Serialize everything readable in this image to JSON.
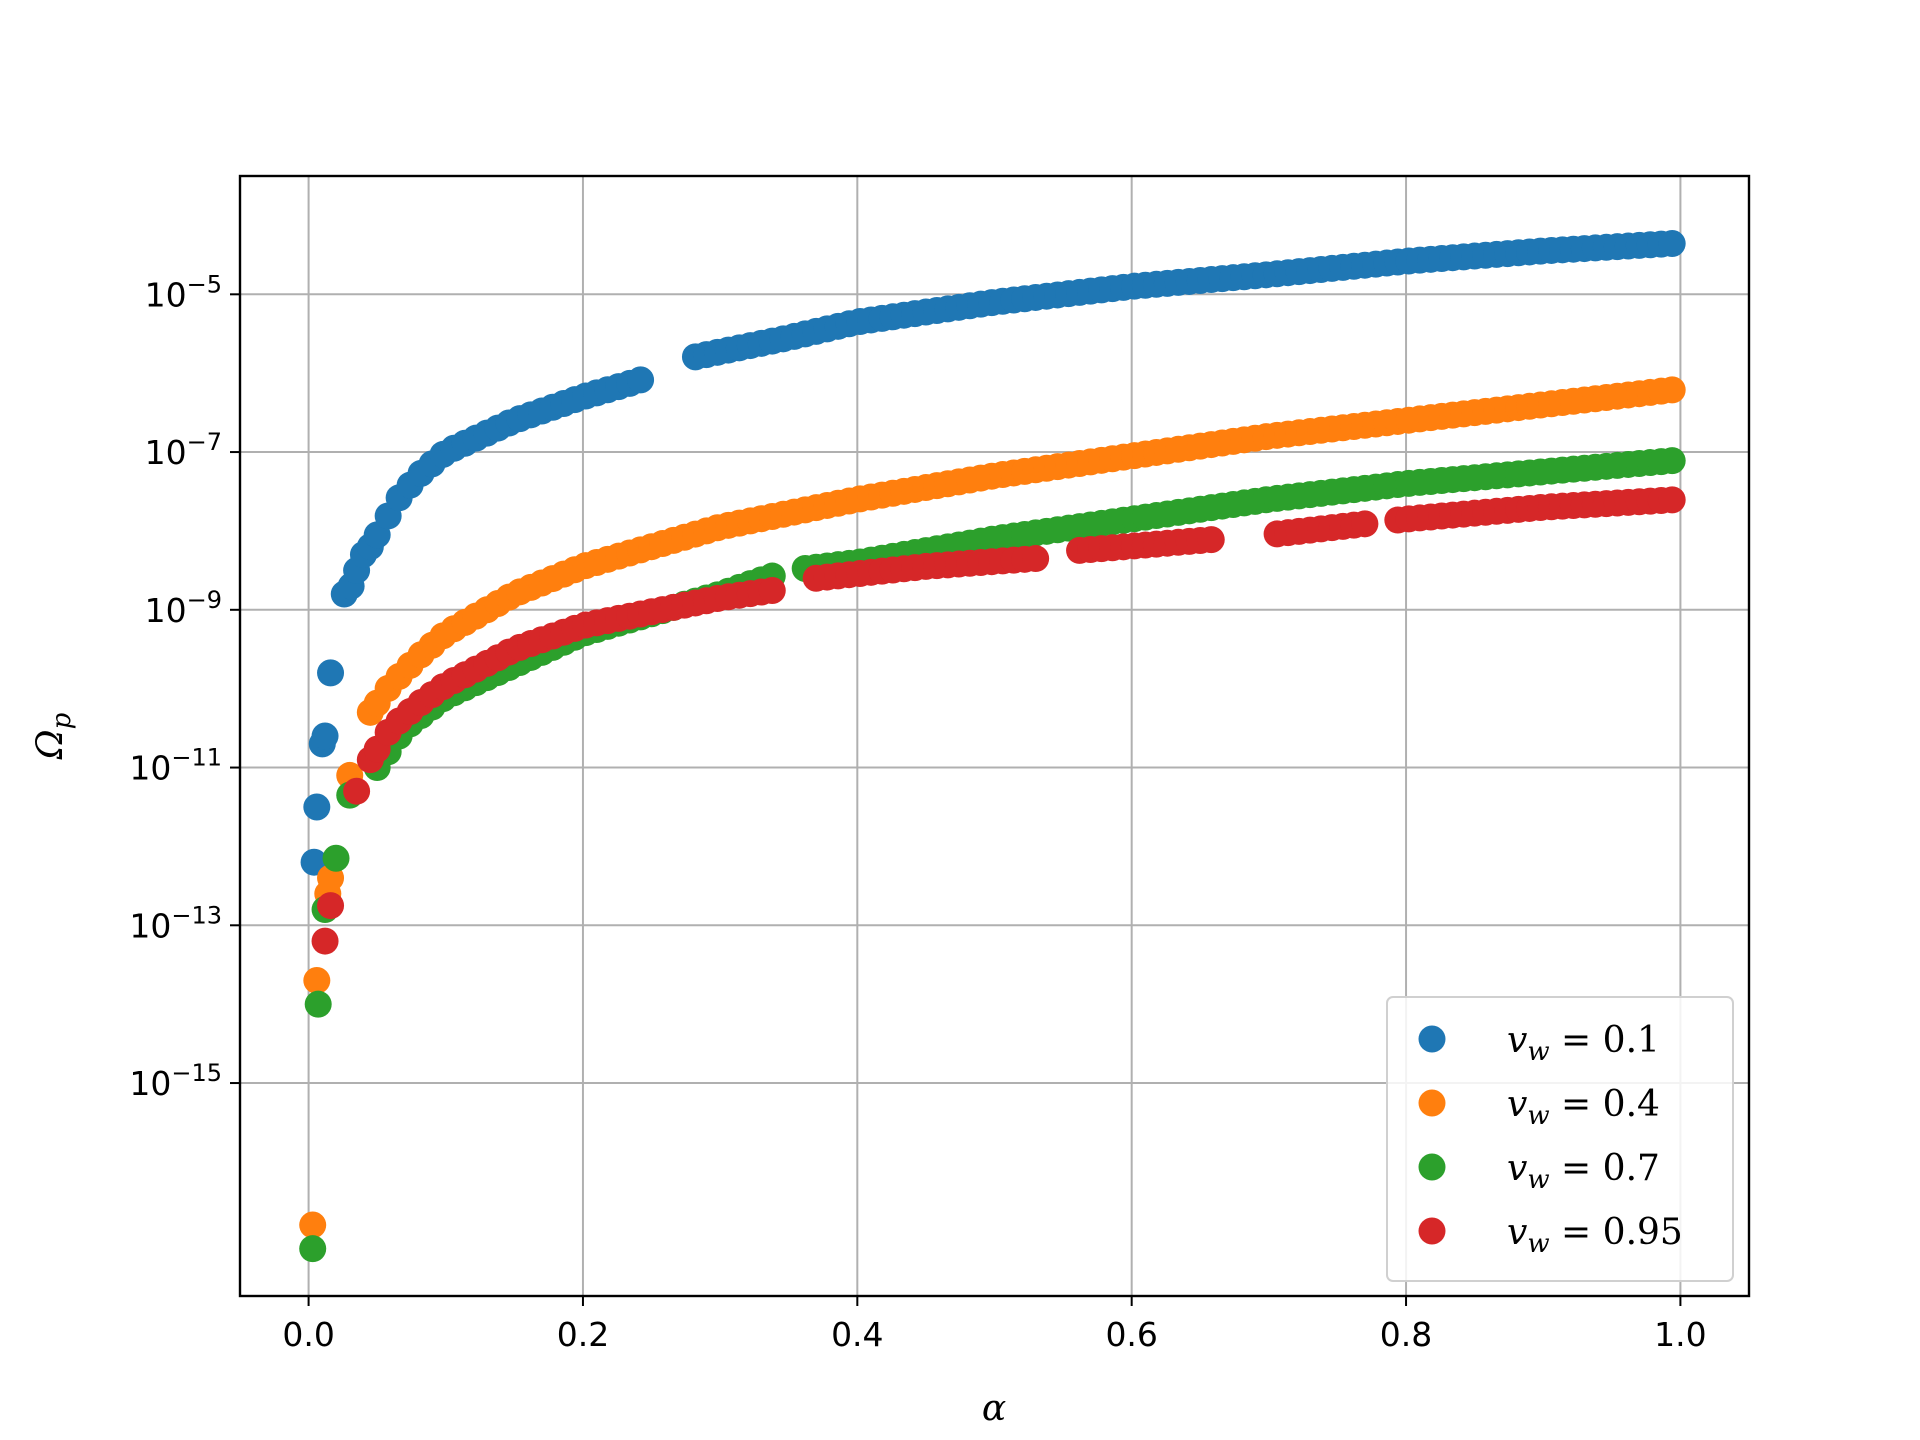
{
  "chart_data": {
    "type": "scatter",
    "title": "",
    "xlabel": "α",
    "ylabel": "Ωp",
    "xscale": "linear",
    "yscale": "log",
    "xlim": [
      -0.05,
      1.05
    ],
    "ylim_exp": [
      -17.7,
      -3.5
    ],
    "xticks": [
      0.0,
      0.2,
      0.4,
      0.6,
      0.8,
      1.0
    ],
    "xtick_labels": [
      "0.0",
      "0.2",
      "0.4",
      "0.6",
      "0.8",
      "1.0"
    ],
    "yticks_exp": [
      -15,
      -13,
      -11,
      -9,
      -7,
      -5
    ],
    "ytick_labels": [
      "10^-15",
      "10^-13",
      "10^-11",
      "10^-9",
      "10^-7",
      "10^-5"
    ],
    "grid": true,
    "legend_position": "lower-right",
    "series": [
      {
        "name": "v_w = 0.1",
        "legend_label": "v_w = 0.1",
        "color": "#1f77b4",
        "anchors": [
          [
            0.004,
            -12.2
          ],
          [
            0.006,
            -11.5
          ],
          [
            0.01,
            -10.7
          ],
          [
            0.012,
            -10.6
          ],
          [
            0.016,
            -9.8
          ],
          [
            0.026,
            -8.8
          ],
          [
            0.031,
            -8.7
          ],
          [
            0.035,
            -8.5
          ],
          [
            0.04,
            -8.3
          ],
          [
            0.045,
            -8.2
          ],
          [
            0.065,
            -7.6
          ],
          [
            0.07,
            -7.5
          ],
          [
            0.08,
            -7.3
          ],
          [
            0.1,
            -7.0
          ],
          [
            0.15,
            -6.6
          ],
          [
            0.2,
            -6.3
          ],
          [
            0.24,
            -6.1
          ],
          [
            0.28,
            -5.8
          ],
          [
            0.35,
            -5.55
          ],
          [
            0.4,
            -5.35
          ],
          [
            0.5,
            -5.1
          ],
          [
            0.6,
            -4.9
          ],
          [
            0.7,
            -4.75
          ],
          [
            0.8,
            -4.58
          ],
          [
            0.9,
            -4.45
          ],
          [
            1.0,
            -4.35
          ]
        ],
        "gaps": [
          [
            0.245,
            0.28
          ]
        ],
        "step": 0.008
      },
      {
        "name": "v_w = 0.4",
        "legend_label": "v_w = 0.4",
        "color": "#ff7f0e",
        "anchors": [
          [
            0.003,
            -16.8
          ],
          [
            0.006,
            -13.7
          ],
          [
            0.014,
            -12.6
          ],
          [
            0.016,
            -12.4
          ],
          [
            0.03,
            -11.1
          ],
          [
            0.045,
            -10.3
          ],
          [
            0.06,
            -9.95
          ],
          [
            0.08,
            -9.6
          ],
          [
            0.1,
            -9.3
          ],
          [
            0.15,
            -8.8
          ],
          [
            0.2,
            -8.45
          ],
          [
            0.3,
            -7.95
          ],
          [
            0.4,
            -7.6
          ],
          [
            0.5,
            -7.3
          ],
          [
            0.6,
            -7.05
          ],
          [
            0.7,
            -6.8
          ],
          [
            0.8,
            -6.6
          ],
          [
            0.9,
            -6.4
          ],
          [
            1.0,
            -6.2
          ]
        ],
        "gaps": [],
        "step": 0.008
      },
      {
        "name": "v_w = 0.7",
        "legend_label": "v_w = 0.7",
        "color": "#2ca02c",
        "anchors": [
          [
            0.003,
            -17.1
          ],
          [
            0.007,
            -14.0
          ],
          [
            0.012,
            -12.8
          ],
          [
            0.02,
            -12.15
          ],
          [
            0.03,
            -11.35
          ],
          [
            0.05,
            -11.0
          ],
          [
            0.07,
            -10.5
          ],
          [
            0.1,
            -10.1
          ],
          [
            0.15,
            -9.7
          ],
          [
            0.2,
            -9.3
          ],
          [
            0.3,
            -8.8
          ],
          [
            0.35,
            -8.5
          ],
          [
            0.4,
            -8.4
          ],
          [
            0.5,
            -8.1
          ],
          [
            0.6,
            -7.85
          ],
          [
            0.7,
            -7.6
          ],
          [
            0.8,
            -7.4
          ],
          [
            0.9,
            -7.25
          ],
          [
            1.0,
            -7.1
          ]
        ],
        "gaps": [
          [
            0.342,
            0.36
          ]
        ],
        "step": 0.008
      },
      {
        "name": "v_w = 0.95",
        "legend_label": "v_w = 0.95",
        "color": "#d62728",
        "anchors": [
          [
            0.012,
            -13.2
          ],
          [
            0.016,
            -12.75
          ],
          [
            0.035,
            -11.3
          ],
          [
            0.045,
            -10.9
          ],
          [
            0.06,
            -10.5
          ],
          [
            0.08,
            -10.2
          ],
          [
            0.1,
            -9.95
          ],
          [
            0.15,
            -9.5
          ],
          [
            0.2,
            -9.2
          ],
          [
            0.3,
            -8.85
          ],
          [
            0.34,
            -8.75
          ],
          [
            0.37,
            -8.6
          ],
          [
            0.45,
            -8.45
          ],
          [
            0.53,
            -8.35
          ],
          [
            0.56,
            -8.25
          ],
          [
            0.7,
            -8.05
          ],
          [
            0.8,
            -7.85
          ],
          [
            0.9,
            -7.7
          ],
          [
            1.0,
            -7.6
          ]
        ],
        "gaps": [
          [
            0.342,
            0.37
          ],
          [
            0.532,
            0.56
          ],
          [
            0.662,
            0.705
          ],
          [
            0.772,
            0.79
          ]
        ],
        "step": 0.008
      }
    ]
  }
}
